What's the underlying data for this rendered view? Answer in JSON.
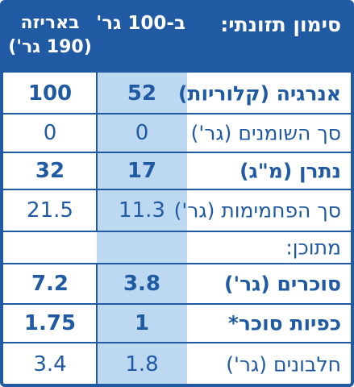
{
  "header": {
    "title": "סימון תזונתי:",
    "per_100_label": "ב-100 גר'",
    "per_package_line1": "באריזה",
    "per_package_line2": "(190 גר')"
  },
  "rows": [
    {
      "label": "אנרגיה (קלוריות)",
      "per_100": "52",
      "per_package": "100"
    },
    {
      "label": "סך השומנים (גר')",
      "per_100": "0",
      "per_package": "0"
    },
    {
      "label": "נתרן (מ\"ג)",
      "per_100": "17",
      "per_package": "32"
    },
    {
      "label": "סך הפחמימות (גר')",
      "per_100": "11.3",
      "per_package": "21.5"
    },
    {
      "label": "מתוכן:",
      "per_100": "",
      "per_package": ""
    },
    {
      "label": "סוכרים (גר')",
      "per_100": "3.8",
      "per_package": "7.2"
    },
    {
      "label": "כפיות סוכר*",
      "per_100": "1",
      "per_package": "1.75"
    },
    {
      "label": "חלבונים (גר')",
      "per_100": "1.8",
      "per_package": "3.4"
    }
  ],
  "colors": {
    "brand_blue": "#1f5aa3",
    "light_blue": "#bcd9f1",
    "background": "#ffffff"
  }
}
